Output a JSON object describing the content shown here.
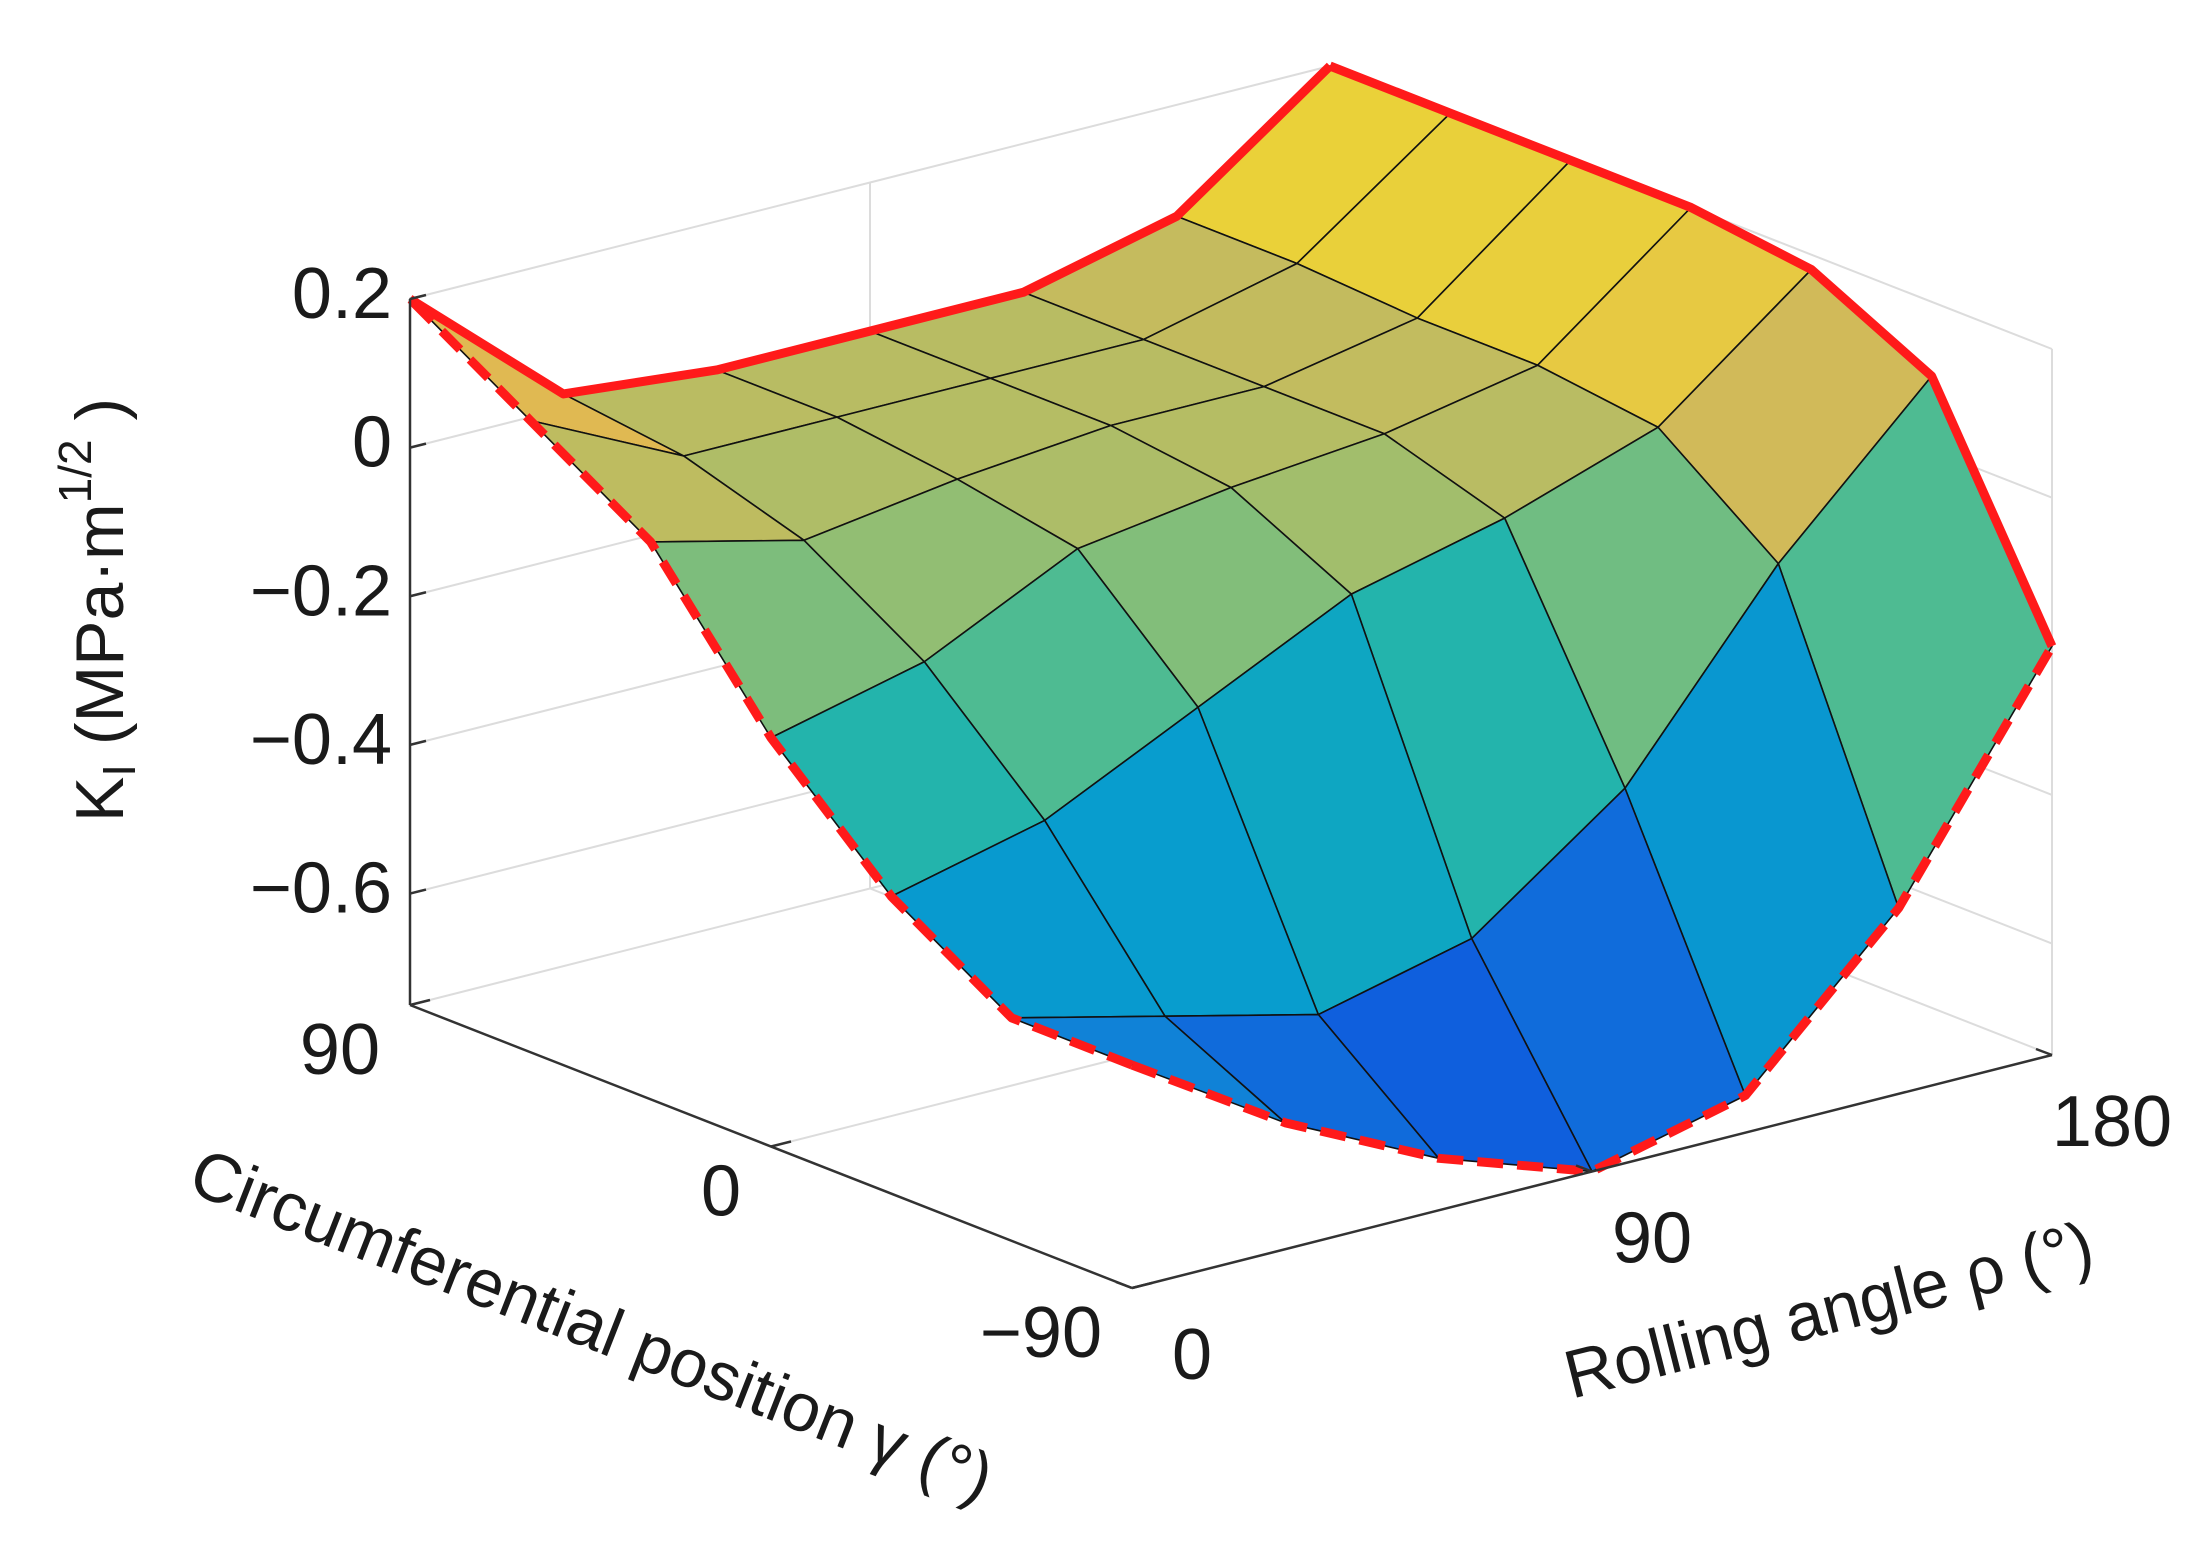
{
  "chart_data": {
    "type": "surface",
    "x": [
      0,
      30,
      60,
      90,
      120,
      150,
      180
    ],
    "y": [
      -90,
      -60,
      -30,
      0,
      30,
      60,
      90
    ],
    "z": [
      [
        -0.45,
        -0.58,
        -0.68,
        -0.75,
        -0.7,
        -0.5,
        -0.2
      ],
      [
        -0.45,
        -0.5,
        -0.55,
        -0.5,
        -0.35,
        -0.1,
        0.1
      ],
      [
        -0.35,
        -0.3,
        -0.2,
        -0.1,
        -0.05,
        0.02,
        0.18
      ],
      [
        -0.2,
        -0.15,
        -0.05,
        -0.02,
        0,
        0.04,
        0.2
      ],
      [
        0,
        -0.05,
        -0.02,
        0,
        0,
        0.04,
        0.2
      ],
      [
        0.1,
        0,
        0,
        0,
        0,
        0.05,
        0.2
      ],
      [
        0.2,
        0.02,
        0,
        0,
        0,
        0.05,
        0.2
      ]
    ],
    "xlabel": "Rolling angle ρ (°)",
    "ylabel": "Circumferential position γ (°)",
    "zlabel": {
      "main": "K",
      "sub": "I",
      "unit": " (MPa·m",
      "sup": "1/2",
      "close": " )"
    },
    "xlim": [
      0,
      180
    ],
    "ylim": [
      -90,
      90
    ],
    "zlim": [
      -0.75,
      0.2
    ],
    "xticks": [
      0,
      90,
      180
    ],
    "yticks": [
      {
        "value": -90,
        "label": "−90"
      },
      0,
      90
    ],
    "zticks": [
      {
        "value": -0.6,
        "label": "−0.6"
      },
      {
        "value": -0.4,
        "label": "−0.4"
      },
      {
        "value": -0.2,
        "label": "−0.2"
      },
      0,
      0.2
    ],
    "colormap": "parula",
    "edge_color": "#ff1a1a",
    "grid": true
  }
}
